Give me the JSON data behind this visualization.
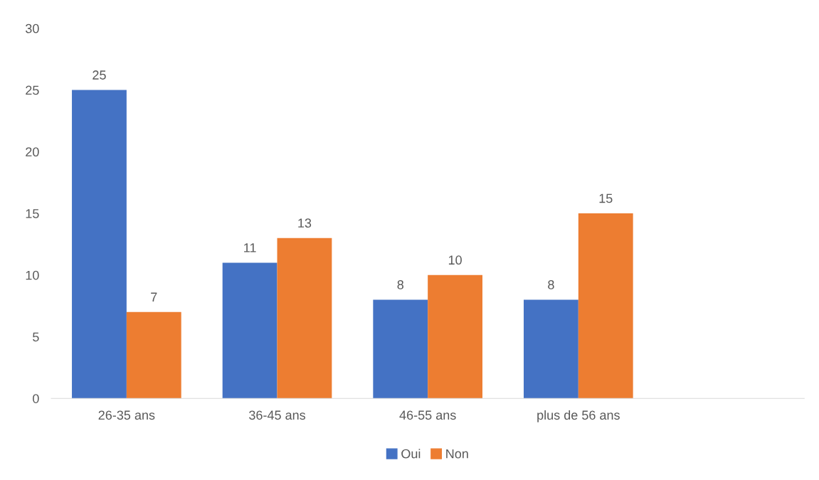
{
  "chart_data": {
    "type": "bar",
    "categories": [
      "26-35 ans",
      "36-45 ans",
      "46-55 ans",
      "plus de 56 ans",
      null
    ],
    "series": [
      {
        "name": "Oui",
        "color": "#4472c4",
        "values": [
          25,
          11,
          8,
          8,
          null
        ]
      },
      {
        "name": "Non",
        "color": "#ed7d31",
        "values": [
          7,
          13,
          10,
          15,
          null
        ]
      }
    ],
    "ylim": [
      0,
      30
    ],
    "yticks": [
      0,
      5,
      10,
      15,
      20,
      25,
      30
    ],
    "grid": false,
    "legend": "bottom",
    "data_labels": true
  }
}
